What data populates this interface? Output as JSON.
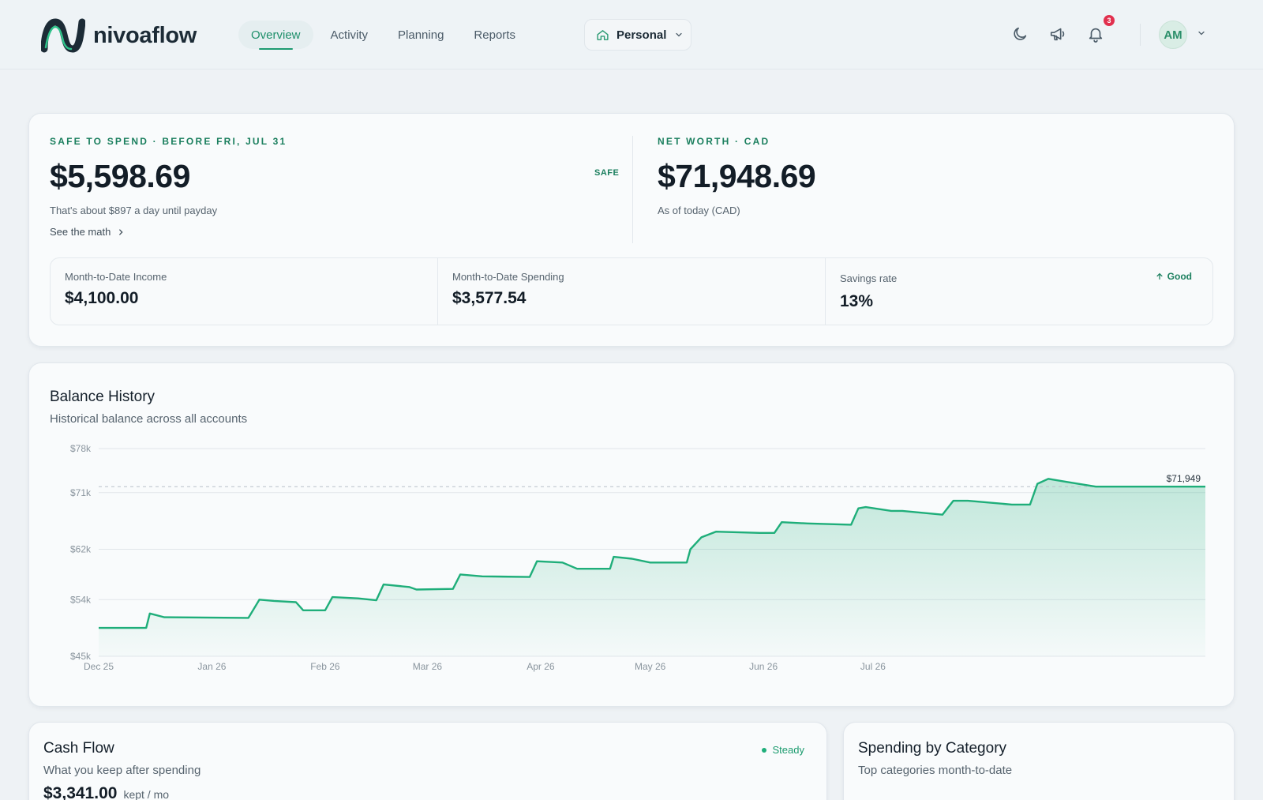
{
  "app": {
    "name": "nivoaflow"
  },
  "nav": {
    "items": [
      {
        "label": "Overview",
        "active": true
      },
      {
        "label": "Activity",
        "active": false
      },
      {
        "label": "Planning",
        "active": false
      },
      {
        "label": "Reports",
        "active": false
      }
    ]
  },
  "workspace": {
    "label": "Personal"
  },
  "header": {
    "icons": [
      "moon-icon",
      "megaphone-icon",
      "bell-icon"
    ],
    "notification_count": "3",
    "avatar_initials": "AM"
  },
  "summary": {
    "safe_to_spend": {
      "eyebrow": "SAFE TO SPEND · BEFORE FRI, JUL 31",
      "amount": "$5,598.69",
      "caption": "That's about $897 a day until payday",
      "link": "See the math",
      "tag": "SAFE"
    },
    "net_worth": {
      "eyebrow": "NET WORTH · CAD",
      "amount": "$71,948.69",
      "caption": "As of today (CAD)"
    },
    "stats": [
      {
        "label": "Month-to-Date Income",
        "value": "$4,100.00"
      },
      {
        "label": "Month-to-Date Spending",
        "value": "$3,577.54"
      },
      {
        "label": "Savings rate",
        "value": "13%",
        "badge": "Good"
      }
    ]
  },
  "balance_history": {
    "title": "Balance History",
    "subtitle": "Historical balance across all accounts"
  },
  "chart_data": {
    "type": "area",
    "title": "Balance History",
    "y_ticks": [
      "$78k",
      "$71k",
      "$62k",
      "$54k",
      "$45k"
    ],
    "y_tick_values": [
      78000,
      71000,
      62000,
      54000,
      45000
    ],
    "ylim": [
      45000,
      78000
    ],
    "x_ticks": [
      "Dec 25",
      "Jan 26",
      "Feb 26",
      "Mar 26",
      "Apr 26",
      "May 26",
      "Jun 26",
      "Jul 26"
    ],
    "x_tick_dates": [
      "2025-12-01",
      "2026-01-01",
      "2026-02-01",
      "2026-03-01",
      "2026-04-01",
      "2026-05-01",
      "2026-06-01",
      "2026-07-01"
    ],
    "reference_line": {
      "value": 71949,
      "label": "$71,949"
    },
    "grid": true,
    "color": "#1fae7a",
    "points": [
      {
        "date": "2025-12-01",
        "value": 49500
      },
      {
        "date": "2025-12-14",
        "value": 49500
      },
      {
        "date": "2025-12-15",
        "value": 51800
      },
      {
        "date": "2025-12-19",
        "value": 51200
      },
      {
        "date": "2026-01-11",
        "value": 51100
      },
      {
        "date": "2026-01-14",
        "value": 54000
      },
      {
        "date": "2026-01-18",
        "value": 53800
      },
      {
        "date": "2026-01-24",
        "value": 53600
      },
      {
        "date": "2026-01-26",
        "value": 52300
      },
      {
        "date": "2026-02-01",
        "value": 52300
      },
      {
        "date": "2026-02-03",
        "value": 54400
      },
      {
        "date": "2026-02-10",
        "value": 54200
      },
      {
        "date": "2026-02-15",
        "value": 53900
      },
      {
        "date": "2026-02-17",
        "value": 56400
      },
      {
        "date": "2026-02-24",
        "value": 56000
      },
      {
        "date": "2026-02-26",
        "value": 55600
      },
      {
        "date": "2026-03-08",
        "value": 55700
      },
      {
        "date": "2026-03-10",
        "value": 58000
      },
      {
        "date": "2026-03-16",
        "value": 57700
      },
      {
        "date": "2026-03-29",
        "value": 57600
      },
      {
        "date": "2026-03-31",
        "value": 60100
      },
      {
        "date": "2026-04-07",
        "value": 59900
      },
      {
        "date": "2026-04-11",
        "value": 58900
      },
      {
        "date": "2026-04-20",
        "value": 58900
      },
      {
        "date": "2026-04-21",
        "value": 60800
      },
      {
        "date": "2026-04-26",
        "value": 60500
      },
      {
        "date": "2026-05-01",
        "value": 59900
      },
      {
        "date": "2026-05-11",
        "value": 59900
      },
      {
        "date": "2026-05-12",
        "value": 62000
      },
      {
        "date": "2026-05-15",
        "value": 63900
      },
      {
        "date": "2026-05-19",
        "value": 64800
      },
      {
        "date": "2026-05-31",
        "value": 64600
      },
      {
        "date": "2026-06-04",
        "value": 64600
      },
      {
        "date": "2026-06-06",
        "value": 66300
      },
      {
        "date": "2026-06-13",
        "value": 66100
      },
      {
        "date": "2026-06-25",
        "value": 65900
      },
      {
        "date": "2026-06-27",
        "value": 68500
      },
      {
        "date": "2026-06-29",
        "value": 68700
      },
      {
        "date": "2026-07-06",
        "value": 68100
      },
      {
        "date": "2026-07-09",
        "value": 68100
      },
      {
        "date": "2026-07-20",
        "value": 67500
      },
      {
        "date": "2026-07-23",
        "value": 69700
      },
      {
        "date": "2026-07-27",
        "value": 69700
      },
      {
        "date": "2026-08-08",
        "value": 69100
      },
      {
        "date": "2026-08-13",
        "value": 69100
      },
      {
        "date": "2026-08-15",
        "value": 72400
      },
      {
        "date": "2026-08-18",
        "value": 73200
      },
      {
        "date": "2026-08-23",
        "value": 72700
      },
      {
        "date": "2026-08-31",
        "value": 71949
      },
      {
        "date": "2026-09-30",
        "value": 71949
      }
    ]
  },
  "cash_flow": {
    "title": "Cash Flow",
    "subtitle": "What you keep after spending",
    "status": "Steady",
    "kept_amount": "$3,341.00",
    "kept_unit": "kept / mo"
  },
  "spending_by_category": {
    "title": "Spending by Category",
    "subtitle": "Top categories month-to-date"
  }
}
